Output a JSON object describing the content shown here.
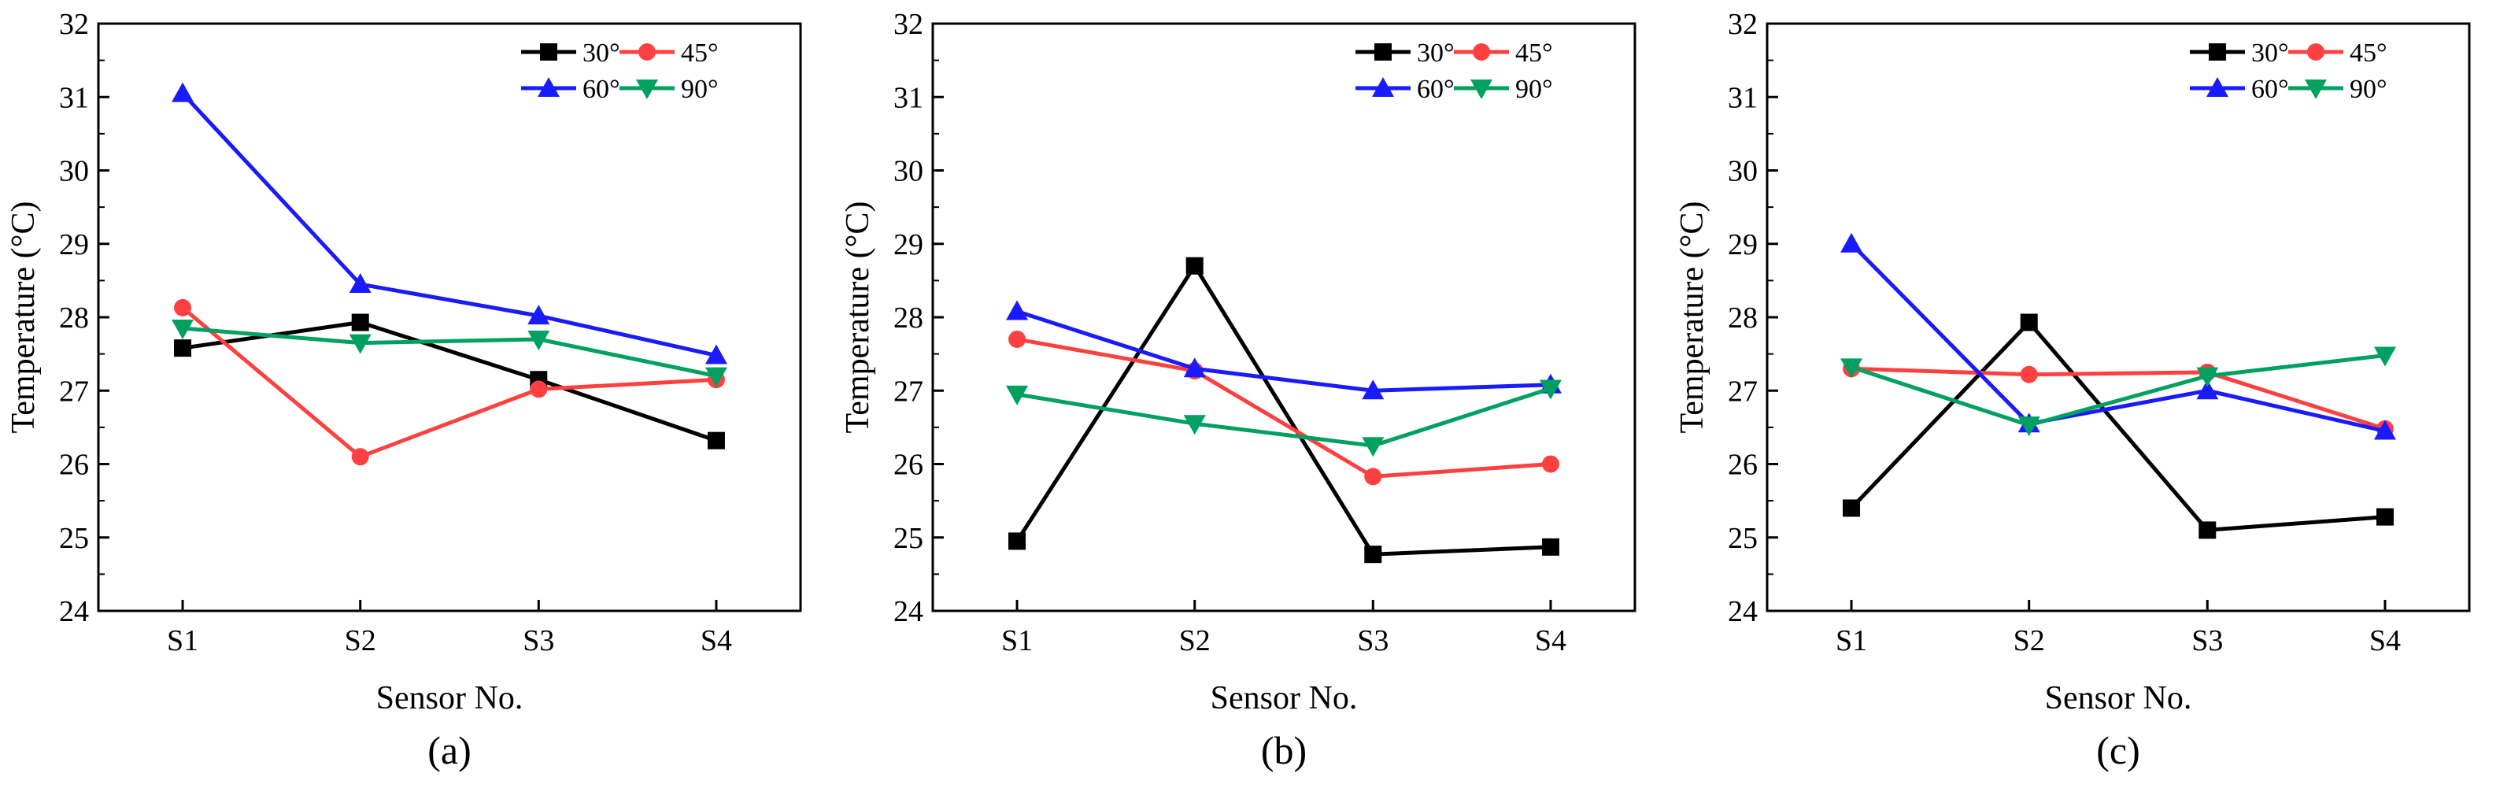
{
  "figure": {
    "series_colors": {
      "30°": "#000000",
      "45°": "#ff4040",
      "60°": "#1a1aff",
      "90°": "#00a060"
    },
    "markers": {
      "30°": "square",
      "45°": "circle",
      "60°": "triangle-up",
      "90°": "triangle-down"
    }
  },
  "chart_data": [
    {
      "type": "line",
      "panel_label": "(a)",
      "title": "",
      "xlabel": "Sensor No.",
      "ylabel": "Temperature (°C)",
      "categories": [
        "S1",
        "S2",
        "S3",
        "S4"
      ],
      "ylim": [
        24,
        32
      ],
      "yticks": [
        "24",
        "25",
        "26",
        "27",
        "28",
        "29",
        "30",
        "31",
        "32"
      ],
      "legend_position": "top-right",
      "series": [
        {
          "name": "30°",
          "values": [
            27.58,
            27.93,
            27.15,
            26.32
          ]
        },
        {
          "name": "45°",
          "values": [
            28.13,
            26.1,
            27.02,
            27.15
          ]
        },
        {
          "name": "60°",
          "values": [
            31.05,
            28.45,
            28.02,
            27.48
          ]
        },
        {
          "name": "90°",
          "values": [
            27.85,
            27.65,
            27.7,
            27.2
          ]
        }
      ]
    },
    {
      "type": "line",
      "panel_label": "(b)",
      "title": "",
      "xlabel": "Sensor No.",
      "ylabel": "Temperature (°C)",
      "categories": [
        "S1",
        "S2",
        "S3",
        "S4"
      ],
      "ylim": [
        24,
        32
      ],
      "yticks": [
        "24",
        "25",
        "26",
        "27",
        "28",
        "29",
        "30",
        "31",
        "32"
      ],
      "legend_position": "top-right",
      "series": [
        {
          "name": "30°",
          "values": [
            24.95,
            28.7,
            24.77,
            24.87
          ]
        },
        {
          "name": "45°",
          "values": [
            27.7,
            27.27,
            25.83,
            26.0
          ]
        },
        {
          "name": "60°",
          "values": [
            28.08,
            27.3,
            27.0,
            27.08
          ]
        },
        {
          "name": "90°",
          "values": [
            26.95,
            26.55,
            26.25,
            27.03
          ]
        }
      ]
    },
    {
      "type": "line",
      "panel_label": "(c)",
      "title": "",
      "xlabel": "Sensor No.",
      "ylabel": "Temperature (°C)",
      "categories": [
        "S1",
        "S2",
        "S3",
        "S4"
      ],
      "ylim": [
        24,
        32
      ],
      "yticks": [
        "24",
        "25",
        "26",
        "27",
        "28",
        "29",
        "30",
        "31",
        "32"
      ],
      "legend_position": "top-right",
      "series": [
        {
          "name": "30°",
          "values": [
            25.4,
            27.93,
            25.1,
            25.28
          ]
        },
        {
          "name": "45°",
          "values": [
            27.3,
            27.22,
            27.25,
            26.48
          ]
        },
        {
          "name": "60°",
          "values": [
            29.0,
            26.55,
            27.0,
            26.45
          ]
        },
        {
          "name": "90°",
          "values": [
            27.32,
            26.53,
            27.2,
            27.48
          ]
        }
      ]
    }
  ]
}
